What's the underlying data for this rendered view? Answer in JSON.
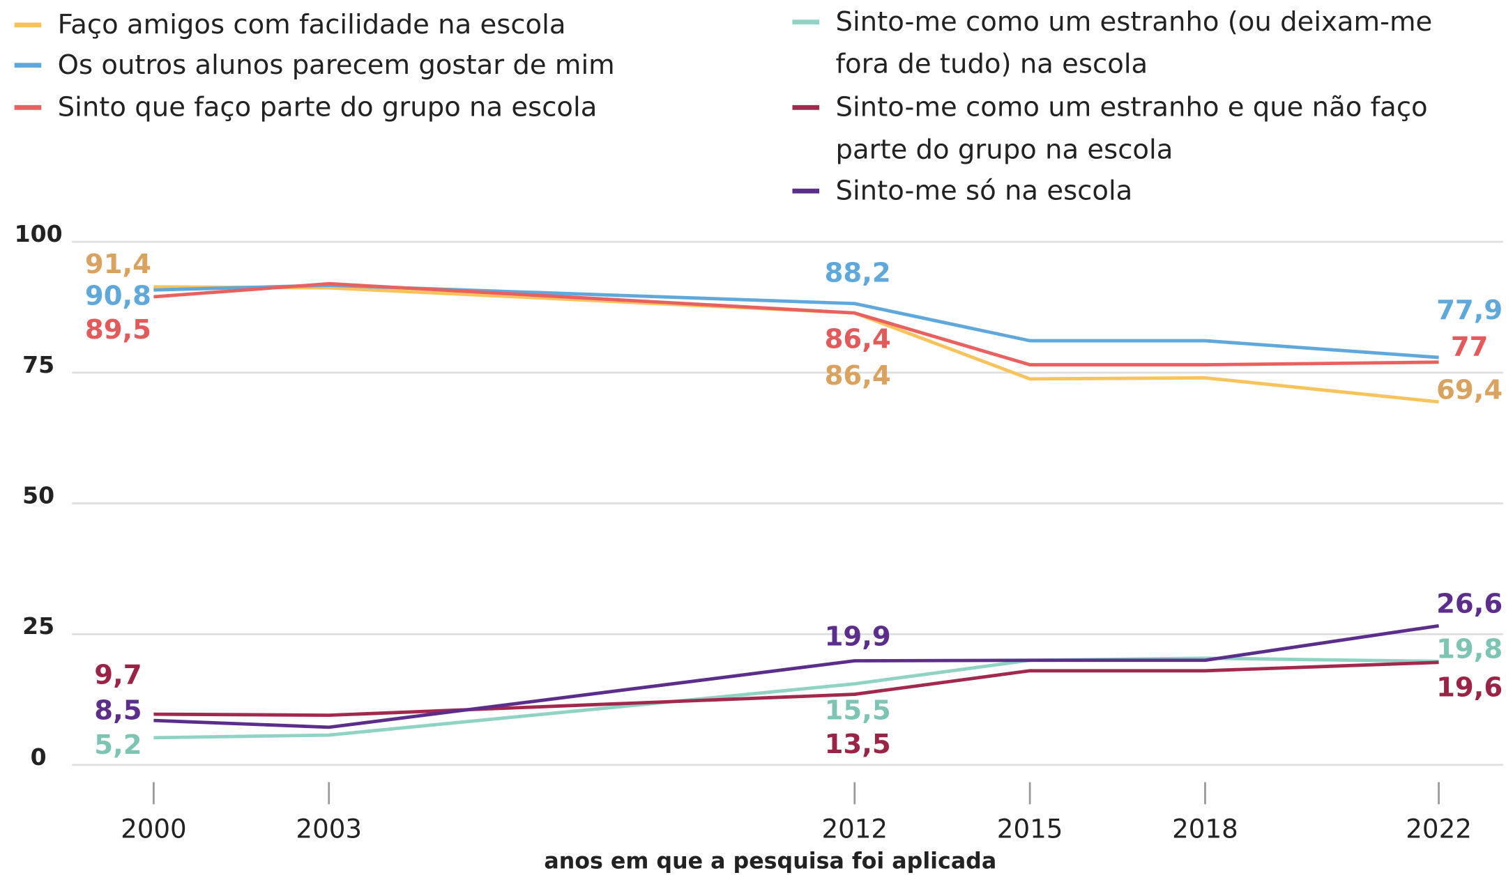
{
  "chart_data": {
    "type": "line",
    "x": [
      2000,
      2003,
      2012,
      2015,
      2018,
      2022
    ],
    "xlim": [
      1998.6,
      2023.1
    ],
    "xticks": [
      2000,
      2003,
      2012,
      2015,
      2018,
      2022
    ],
    "ylim": [
      0,
      100
    ],
    "yticks": [
      0,
      25,
      50,
      75,
      100
    ],
    "grid": true,
    "x_label": "anos em que a pesquisa foi aplicada",
    "series": [
      {
        "name": "Faço amigos com facilidade na escola",
        "color": "#f9c35c",
        "label_color": "#d9a35f",
        "values": [
          91.4,
          91.2,
          86.4,
          73.8,
          74,
          69.4
        ],
        "value_labels": [
          "91,4",
          null,
          "86,4",
          null,
          null,
          "69,4"
        ]
      },
      {
        "name": "Os outros alunos parecem gostar de mim",
        "color": "#5fa8dc",
        "label_color": "#5fa8dc",
        "values": [
          90.8,
          91.7,
          88.2,
          81.1,
          81.1,
          77.9
        ],
        "value_labels": [
          "90,8",
          null,
          "88,2",
          null,
          null,
          "77,9"
        ]
      },
      {
        "name": "Sinto que faço parte do grupo na escola",
        "color": "#e8615f",
        "label_color": "#e35a5a",
        "values": [
          89.5,
          92,
          86.4,
          76.5,
          76.5,
          77
        ],
        "value_labels": [
          "89,5",
          null,
          "86,4",
          null,
          null,
          "77"
        ]
      },
      {
        "name": "Sinto-me como um estranho (ou deixam-me fora de tudo) na escola",
        "color": "#8fd3c5",
        "label_color": "#7dc4b4",
        "values": [
          5.2,
          5.7,
          15.5,
          20,
          20.4,
          19.8
        ],
        "value_labels": [
          "5,2",
          null,
          "15,5",
          null,
          null,
          "19,8"
        ]
      },
      {
        "name": "Sinto-me como um estranho e que não faço parte do grupo na escola",
        "color": "#a3284e",
        "label_color": "#9b2346",
        "values": [
          9.7,
          9.5,
          13.5,
          18,
          18,
          19.6
        ],
        "value_labels": [
          "9,7",
          null,
          "13,5",
          null,
          null,
          "19,6"
        ]
      },
      {
        "name": "Sinto-me só na escola",
        "color": "#5b2e8c",
        "label_color": "#5b2e8c",
        "values": [
          8.5,
          7.2,
          19.9,
          20,
          20,
          26.6
        ],
        "value_labels": [
          "8,5",
          null,
          "19,9",
          null,
          null,
          "26,6"
        ]
      }
    ]
  }
}
